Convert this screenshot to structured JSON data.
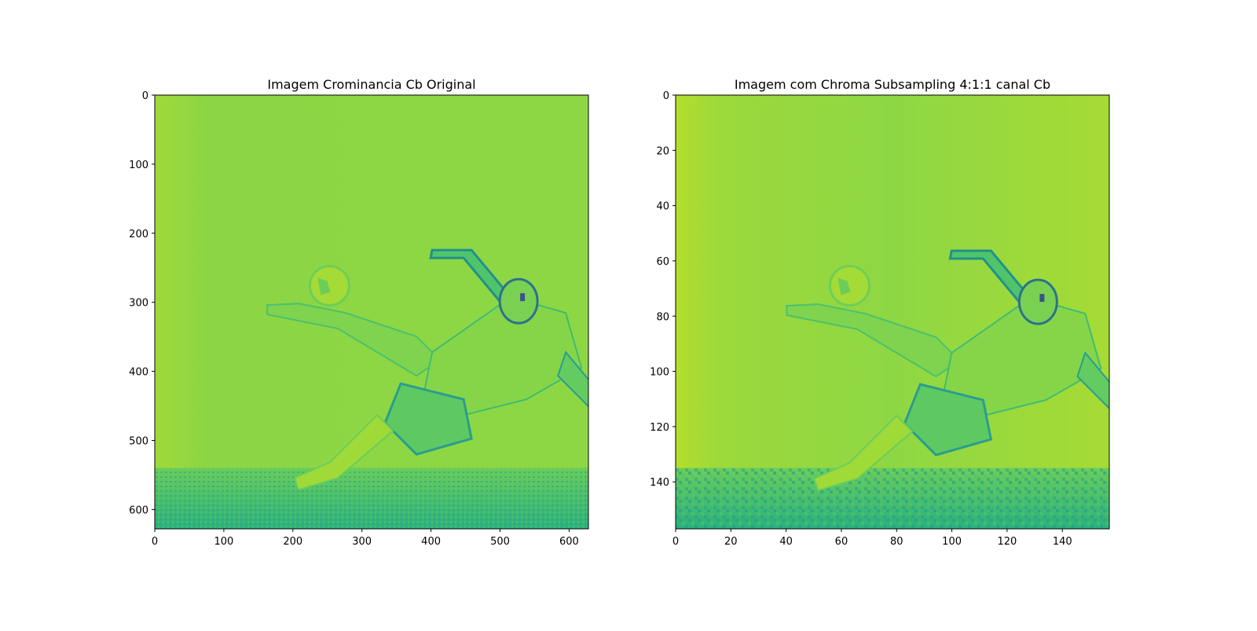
{
  "chart_data": [
    {
      "type": "heatmap",
      "title": "Imagem Crominancia Cb Original",
      "xlim": [
        0,
        628
      ],
      "ylim": [
        628,
        0
      ],
      "xticks": [
        0,
        100,
        200,
        300,
        400,
        500,
        600
      ],
      "yticks": [
        0,
        100,
        200,
        300,
        400,
        500,
        600
      ],
      "colormap": "viridis",
      "subject": {
        "ball": {
          "x": 253,
          "y": 276
        },
        "player_body": {
          "x": 470,
          "y": 395
        },
        "horizon_y": 540
      }
    },
    {
      "type": "heatmap",
      "title": "Imagem com Chroma Subsampling 4:1:1 canal Cb",
      "xlim": [
        0,
        157
      ],
      "ylim": [
        157,
        0
      ],
      "xticks": [
        0,
        20,
        40,
        60,
        80,
        100,
        120,
        140
      ],
      "yticks": [
        0,
        20,
        40,
        60,
        80,
        100,
        120,
        140
      ],
      "colormap": "viridis",
      "subject": {
        "ball": {
          "x": 63,
          "y": 69
        },
        "player_body": {
          "x": 117,
          "y": 99
        },
        "horizon_y": 135
      }
    }
  ],
  "colors": {
    "background": "#8bd645",
    "light": "#b8de29",
    "dark": "#20a386",
    "darkest": "#3b528b"
  }
}
